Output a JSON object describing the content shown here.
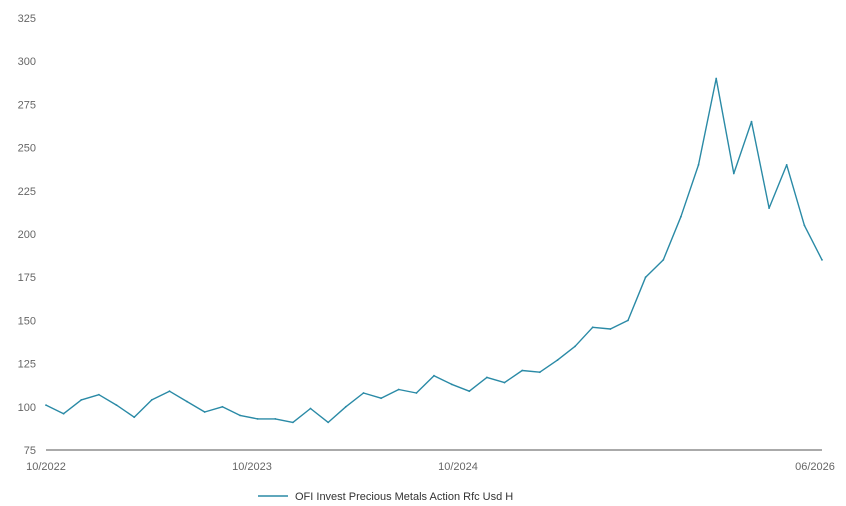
{
  "chart_data": {
    "type": "line",
    "x_ticks": [
      "10/2022",
      "10/2023",
      "10/2024",
      "06/2026"
    ],
    "y_ticks": [
      75,
      100,
      125,
      150,
      175,
      200,
      225,
      250,
      275,
      300,
      325
    ],
    "ylim": [
      75,
      325
    ],
    "xlim": [
      "2022-10",
      "2026-06"
    ],
    "grid": false,
    "legend_position": "bottom",
    "series": [
      {
        "name": "OFI Invest Precious Metals Action Rfc Usd H",
        "color": "#2a8aa6",
        "x": [
          "2022-10",
          "2022-11",
          "2022-12",
          "2023-01",
          "2023-02",
          "2023-03",
          "2023-04",
          "2023-05",
          "2023-06",
          "2023-07",
          "2023-08",
          "2023-09",
          "2023-10",
          "2023-11",
          "2023-12",
          "2024-01",
          "2024-02",
          "2024-03",
          "2024-04",
          "2024-05",
          "2024-06",
          "2024-07",
          "2024-08",
          "2024-09",
          "2024-10",
          "2024-11",
          "2024-12",
          "2025-01",
          "2025-02",
          "2025-03",
          "2025-04",
          "2025-05",
          "2025-06",
          "2025-07",
          "2025-08",
          "2025-09",
          "2025-10",
          "2025-11",
          "2025-12",
          "2026-01",
          "2026-02",
          "2026-03",
          "2026-04",
          "2026-05",
          "2026-06"
        ],
        "values": [
          101,
          96,
          104,
          107,
          101,
          94,
          104,
          109,
          103,
          97,
          100,
          95,
          93,
          93,
          91,
          99,
          91,
          100,
          108,
          105,
          110,
          108,
          118,
          113,
          109,
          117,
          114,
          121,
          120,
          127,
          135,
          146,
          145,
          150,
          175,
          185,
          210,
          240,
          290,
          235,
          265,
          215,
          240,
          205,
          185
        ]
      }
    ]
  }
}
